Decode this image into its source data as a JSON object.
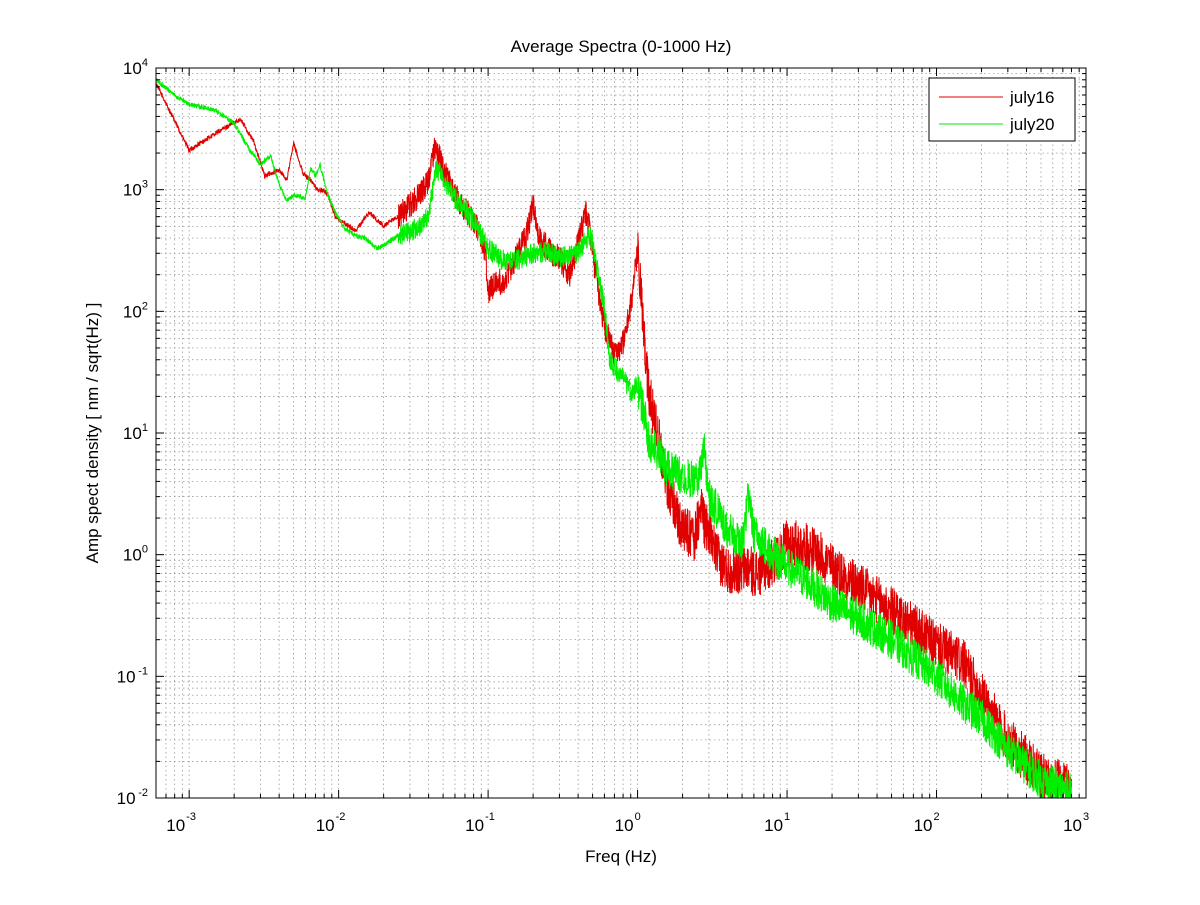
{
  "chart_data": {
    "type": "line",
    "title": "Average Spectra (0-1000 Hz)",
    "xlabel": "Freq (Hz)",
    "ylabel": "Amp spect density [ nm / sqrt(Hz) ]",
    "x_scale": "log",
    "y_scale": "log",
    "xlim": [
      0.0006,
      1000
    ],
    "ylim": [
      0.01,
      10000
    ],
    "grid": true,
    "legend_position": "top-right",
    "x_ticks": [
      {
        "value": 0.001,
        "base": "10",
        "exp": "-3"
      },
      {
        "value": 0.01,
        "base": "10",
        "exp": "-2"
      },
      {
        "value": 0.1,
        "base": "10",
        "exp": "-1"
      },
      {
        "value": 1,
        "base": "10",
        "exp": "0"
      },
      {
        "value": 10,
        "base": "10",
        "exp": "1"
      },
      {
        "value": 100,
        "base": "10",
        "exp": "2"
      },
      {
        "value": 1000,
        "base": "10",
        "exp": "3"
      }
    ],
    "y_ticks": [
      {
        "value": 0.01,
        "base": "10",
        "exp": "-2"
      },
      {
        "value": 0.1,
        "base": "10",
        "exp": "-1"
      },
      {
        "value": 1,
        "base": "10",
        "exp": "0"
      },
      {
        "value": 10,
        "base": "10",
        "exp": "1"
      },
      {
        "value": 100,
        "base": "10",
        "exp": "2"
      },
      {
        "value": 1000,
        "base": "10",
        "exp": "3"
      },
      {
        "value": 10000,
        "base": "10",
        "exp": "4"
      }
    ],
    "series": [
      {
        "name": "july16",
        "color": "#e00000",
        "noise": 0.2,
        "x": [
          0.0006,
          0.001,
          0.0015,
          0.0022,
          0.0027,
          0.0032,
          0.004,
          0.0045,
          0.005,
          0.0058,
          0.0065,
          0.0072,
          0.008,
          0.0085,
          0.0095,
          0.0105,
          0.013,
          0.016,
          0.02,
          0.025,
          0.03,
          0.035,
          0.04,
          0.044,
          0.047,
          0.05,
          0.06,
          0.07,
          0.08,
          0.09,
          0.096,
          0.1,
          0.11,
          0.13,
          0.15,
          0.18,
          0.2,
          0.22,
          0.26,
          0.3,
          0.35,
          0.4,
          0.45,
          0.48,
          0.5,
          0.55,
          0.6,
          0.7,
          0.8,
          0.9,
          1.0,
          1.05,
          1.1,
          1.2,
          1.4,
          1.6,
          2.0,
          2.4,
          2.7,
          2.8,
          3.0,
          3.5,
          4.0,
          5.0,
          5.5,
          6.0,
          7.0,
          9.0,
          10,
          15,
          20,
          30,
          50,
          100,
          150,
          200,
          300,
          500,
          800
        ],
        "y": [
          7500,
          2100,
          2900,
          3800,
          2500,
          1300,
          1450,
          1200,
          2400,
          1350,
          1200,
          1000,
          980,
          900,
          600,
          550,
          460,
          650,
          500,
          600,
          750,
          900,
          1200,
          2200,
          1900,
          1500,
          900,
          700,
          550,
          400,
          300,
          140,
          170,
          180,
          260,
          420,
          780,
          400,
          310,
          280,
          200,
          360,
          650,
          460,
          300,
          140,
          75,
          45,
          55,
          110,
          310,
          150,
          60,
          20,
          8.5,
          3.5,
          1.6,
          1.4,
          2.5,
          1.8,
          1.5,
          0.9,
          0.75,
          0.75,
          0.8,
          0.7,
          0.75,
          1.0,
          1.3,
          1.1,
          0.8,
          0.55,
          0.35,
          0.18,
          0.13,
          0.07,
          0.03,
          0.015,
          0.012
        ]
      },
      {
        "name": "july20",
        "color": "#00ee00",
        "noise": 0.16,
        "x": [
          0.0006,
          0.0008,
          0.001,
          0.0015,
          0.002,
          0.0025,
          0.003,
          0.0035,
          0.004,
          0.0045,
          0.005,
          0.006,
          0.0065,
          0.007,
          0.0075,
          0.0085,
          0.0095,
          0.011,
          0.013,
          0.015,
          0.018,
          0.02,
          0.025,
          0.03,
          0.035,
          0.04,
          0.045,
          0.05,
          0.06,
          0.07,
          0.08,
          0.1,
          0.12,
          0.15,
          0.2,
          0.25,
          0.3,
          0.4,
          0.47,
          0.5,
          0.55,
          0.6,
          0.65,
          0.7,
          0.8,
          0.9,
          1.0,
          1.1,
          1.2,
          1.4,
          1.6,
          2.0,
          2.5,
          2.8,
          3.0,
          3.5,
          4.0,
          5.0,
          5.5,
          6.0,
          8.0,
          10,
          15,
          20,
          30,
          50,
          100,
          150,
          200,
          300,
          500,
          800
        ],
        "y": [
          8000,
          6000,
          5000,
          4500,
          3500,
          2200,
          1600,
          1900,
          1100,
          800,
          900,
          850,
          1500,
          1300,
          1600,
          900,
          650,
          480,
          420,
          400,
          330,
          350,
          420,
          450,
          500,
          600,
          1500,
          1250,
          850,
          700,
          550,
          330,
          270,
          260,
          300,
          310,
          280,
          300,
          420,
          380,
          190,
          110,
          40,
          35,
          28,
          22,
          24,
          15,
          8,
          7,
          5,
          4.5,
          4.0,
          7.0,
          3.0,
          2.2,
          1.6,
          1.2,
          3.0,
          1.5,
          1.0,
          0.8,
          0.55,
          0.4,
          0.3,
          0.2,
          0.1,
          0.06,
          0.045,
          0.025,
          0.014,
          0.011
        ]
      }
    ]
  }
}
